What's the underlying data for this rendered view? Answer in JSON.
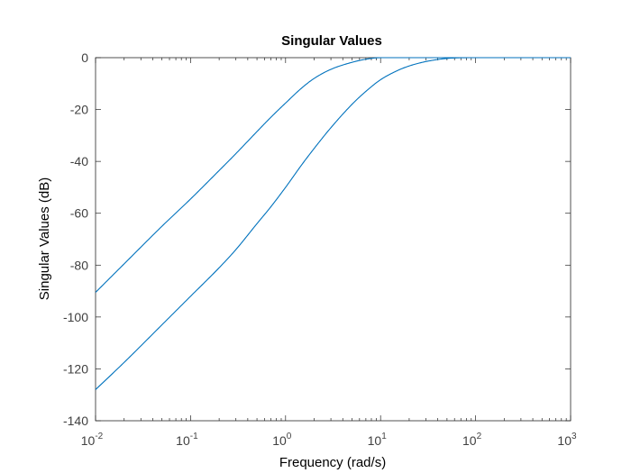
{
  "chart_data": {
    "type": "line",
    "title": "Singular Values",
    "xlabel": "Frequency (rad/s)",
    "ylabel": "Singular Values (dB)",
    "xscale": "log",
    "xlim": [
      0.01,
      1000
    ],
    "ylim": [
      -140,
      0
    ],
    "grid": false,
    "legend": "none",
    "line_color": "#0072BD",
    "x_ticks": [
      {
        "base": "10",
        "exp": "-2",
        "value": 0.01
      },
      {
        "base": "10",
        "exp": "-1",
        "value": 0.1
      },
      {
        "base": "10",
        "exp": "0",
        "value": 1
      },
      {
        "base": "10",
        "exp": "1",
        "value": 10
      },
      {
        "base": "10",
        "exp": "2",
        "value": 100
      },
      {
        "base": "10",
        "exp": "3",
        "value": 1000
      }
    ],
    "y_ticks": [
      0,
      -20,
      -40,
      -60,
      -80,
      -100,
      -120,
      -140
    ],
    "series": [
      {
        "x": [
          0.01,
          0.02,
          0.05,
          0.1,
          0.2,
          0.3,
          0.5,
          0.7,
          1,
          1.5,
          2,
          3,
          5,
          7,
          10,
          20,
          50,
          100,
          1000
        ],
        "y": [
          -90.5,
          -79.5,
          -65,
          -54.5,
          -43.5,
          -37,
          -28.5,
          -23,
          -17.5,
          -11.5,
          -8,
          -4.5,
          -1.8,
          -0.6,
          0,
          0,
          0,
          0,
          0
        ]
      },
      {
        "x": [
          0.01,
          0.02,
          0.05,
          0.1,
          0.2,
          0.3,
          0.5,
          0.7,
          1,
          1.5,
          2,
          3,
          5,
          7,
          10,
          15,
          20,
          30,
          50,
          100,
          1000
        ],
        "y": [
          -128,
          -117.5,
          -103,
          -92,
          -81,
          -74,
          -64,
          -57.5,
          -50,
          -41,
          -35,
          -27,
          -18,
          -13,
          -8.5,
          -5,
          -3.2,
          -1.5,
          -0.3,
          0,
          0
        ]
      }
    ]
  }
}
